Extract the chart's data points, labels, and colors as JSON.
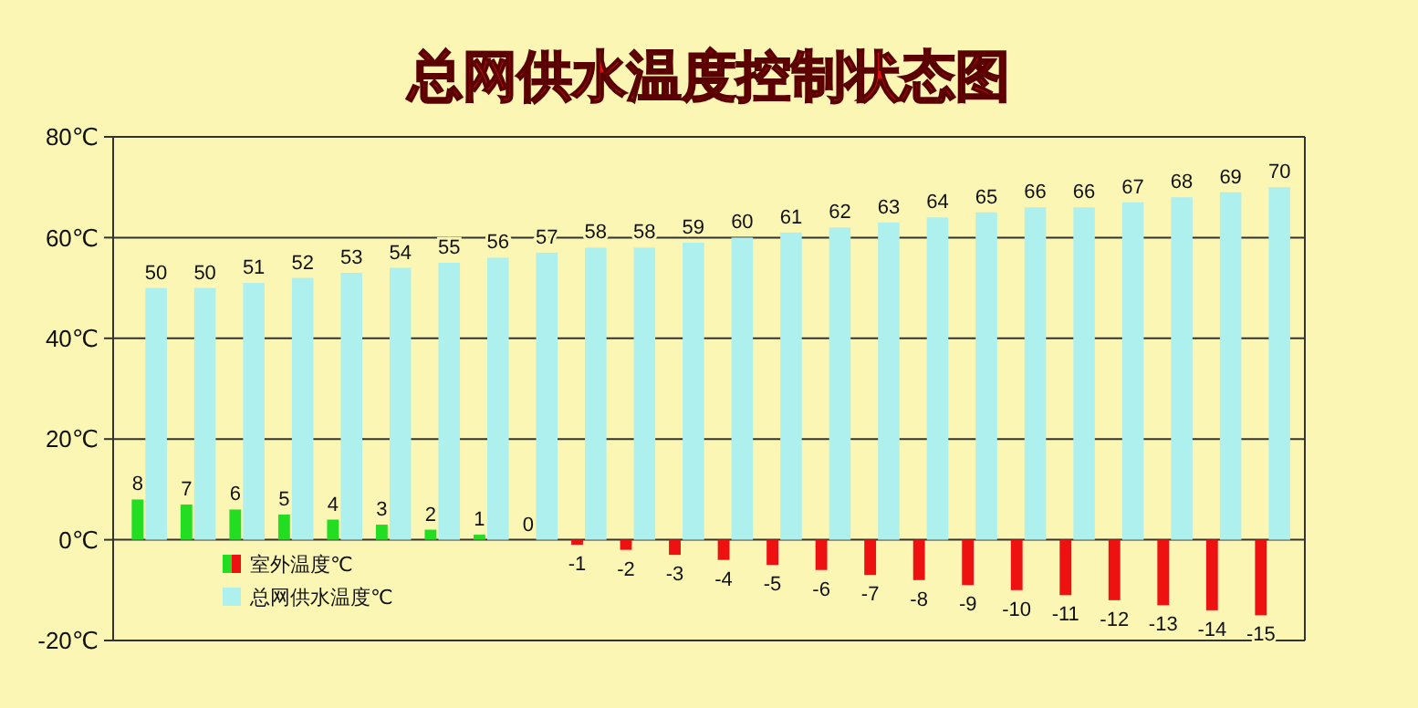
{
  "chart_data": {
    "type": "bar",
    "title": "总网供水温度控制状态图",
    "categories": [
      null,
      null,
      null,
      null,
      null,
      null,
      null,
      null,
      null,
      null,
      null,
      null,
      null,
      null,
      null,
      null,
      null,
      null,
      null,
      null,
      null,
      null,
      null,
      null
    ],
    "series": [
      {
        "name": "室外温度℃",
        "colors": [
          "#22dd22",
          "#22dd22",
          "#22dd22",
          "#22dd22",
          "#22dd22",
          "#22dd22",
          "#22dd22",
          "#22dd22",
          "#22dd22",
          "#ee1111",
          "#ee1111",
          "#ee1111",
          "#ee1111",
          "#ee1111",
          "#ee1111",
          "#ee1111",
          "#ee1111",
          "#ee1111",
          "#ee1111",
          "#ee1111",
          "#ee1111",
          "#ee1111",
          "#ee1111",
          "#ee1111"
        ],
        "values": [
          8,
          7,
          6,
          5,
          4,
          3,
          2,
          1,
          0,
          -1,
          -2,
          -3,
          -4,
          -5,
          -6,
          -7,
          -8,
          -9,
          -10,
          -11,
          -12,
          -13,
          -14,
          -15
        ]
      },
      {
        "name": "总网供水温度℃",
        "color": "#aef0ee",
        "values": [
          50,
          50,
          51,
          52,
          53,
          54,
          55,
          56,
          57,
          58,
          58,
          59,
          60,
          61,
          62,
          63,
          64,
          65,
          66,
          66,
          67,
          68,
          69,
          70
        ]
      }
    ],
    "ylim": [
      -20,
      80
    ],
    "yticks": [
      {
        "value": -20,
        "label": "-20℃"
      },
      {
        "value": 0,
        "label": "0℃"
      },
      {
        "value": 20,
        "label": "20℃"
      },
      {
        "value": 40,
        "label": "40℃"
      },
      {
        "value": 60,
        "label": "60℃"
      },
      {
        "value": 80,
        "label": "80℃"
      }
    ],
    "grid": "y",
    "data_labels": true,
    "legend": "bottom left"
  }
}
